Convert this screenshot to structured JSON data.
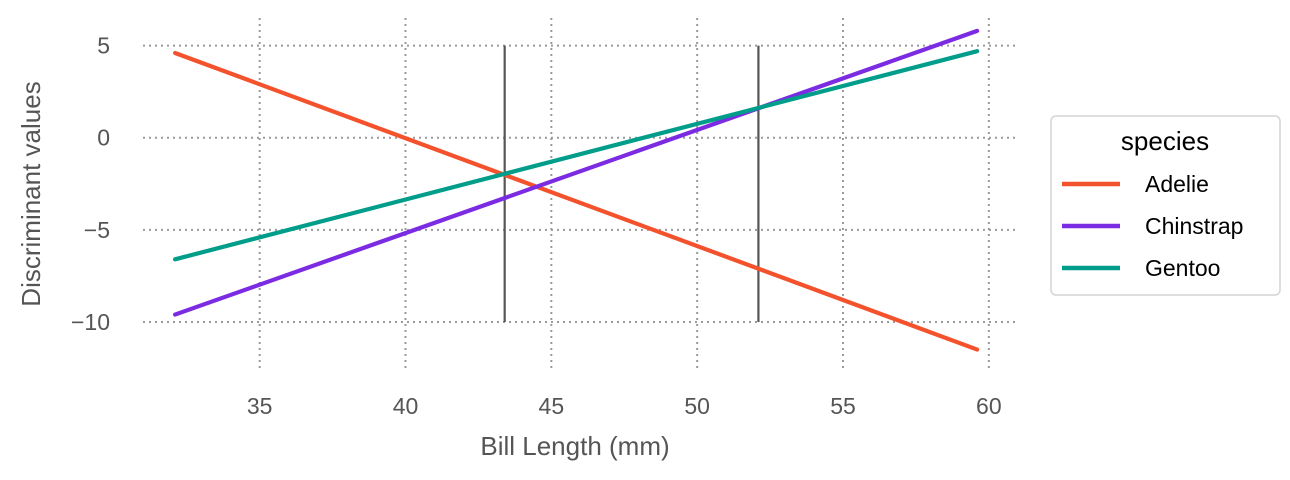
{
  "chart_data": {
    "type": "line",
    "xlabel": "Bill Length (mm)",
    "ylabel": "Discriminant values",
    "xlim": [
      31,
      61
    ],
    "ylim": [
      -12.5,
      6.5
    ],
    "xticks": [
      35,
      40,
      45,
      50,
      55,
      60
    ],
    "yticks": [
      5,
      0,
      -5,
      -10
    ],
    "xtick_labels": [
      "35",
      "40",
      "45",
      "50",
      "55",
      "60"
    ],
    "ytick_labels": [
      "5",
      "0",
      "−5",
      "−10"
    ],
    "grid": true,
    "grid_style": "dotted",
    "legend": {
      "title": "species",
      "placement": "right"
    },
    "series": [
      {
        "name": "Adelie",
        "color": "#F4522D",
        "x": [
          32.1,
          59.6
        ],
        "y": [
          4.6,
          -11.5
        ]
      },
      {
        "name": "Chinstrap",
        "color": "#7B2BE2",
        "x": [
          32.1,
          59.6
        ],
        "y": [
          -9.6,
          5.8
        ]
      },
      {
        "name": "Gentoo",
        "color": "#009E8A",
        "x": [
          32.1,
          59.6
        ],
        "y": [
          -6.6,
          4.7
        ]
      }
    ],
    "vertical_lines": [
      {
        "x": 43.4,
        "y_from": -10,
        "y_to": 5,
        "color": "#555555"
      },
      {
        "x": 52.1,
        "y_from": -10,
        "y_to": 5,
        "color": "#555555"
      }
    ]
  }
}
